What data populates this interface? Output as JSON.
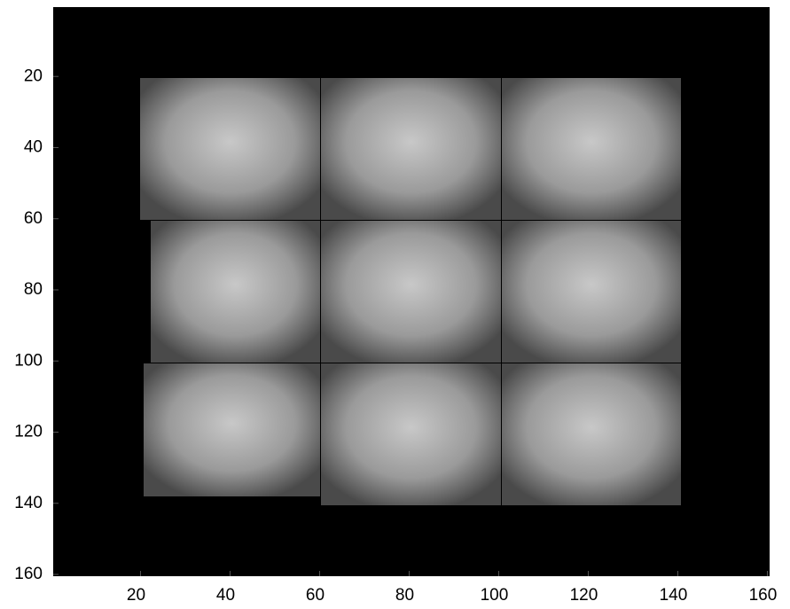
{
  "chart_data": {
    "type": "image",
    "xlim": [
      0.5,
      160.5
    ],
    "ylim": [
      0.5,
      160.5
    ],
    "yreverse": true,
    "xticks": [
      20,
      40,
      60,
      80,
      100,
      120,
      140,
      160
    ],
    "yticks": [
      20,
      40,
      60,
      80,
      100,
      120,
      140,
      160
    ]
  }
}
